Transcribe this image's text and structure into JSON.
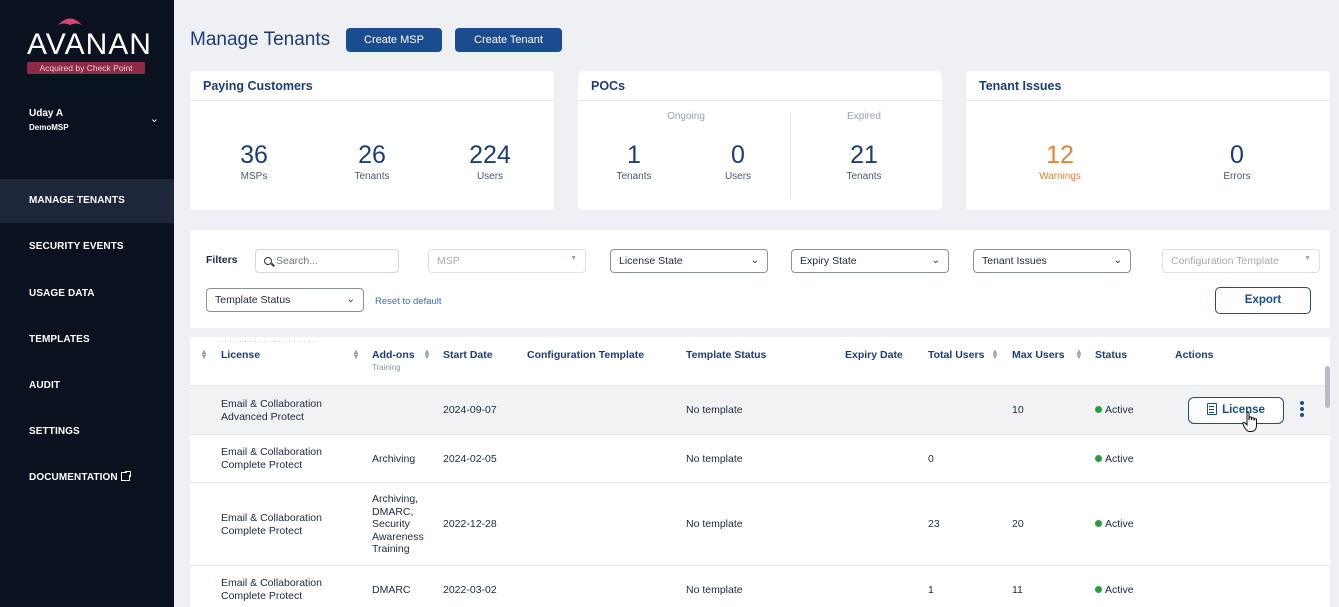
{
  "brand": {
    "logo_text": "AVANAN",
    "logo_subtitle": "Acquired by Check Point"
  },
  "user": {
    "name": "Uday A",
    "org": "DemoMSP"
  },
  "nav": {
    "items": [
      {
        "label": "MANAGE TENANTS",
        "active": true
      },
      {
        "label": "SECURITY EVENTS"
      },
      {
        "label": "USAGE DATA"
      },
      {
        "label": "TEMPLATES"
      },
      {
        "label": "AUDIT"
      },
      {
        "label": "SETTINGS"
      },
      {
        "label": "DOCUMENTATION"
      }
    ]
  },
  "header": {
    "title": "Manage Tenants",
    "create_msp": "Create MSP",
    "create_tenant": "Create Tenant"
  },
  "cards": {
    "paying": {
      "title": "Paying Customers",
      "msps_value": "36",
      "msps_label": "MSPs",
      "tenants_value": "26",
      "tenants_label": "Tenants",
      "users_value": "224",
      "users_label": "Users"
    },
    "pocs": {
      "title": "POCs",
      "ongoing_label": "Ongoing",
      "expired_label": "Expired",
      "ongoing_tenants_value": "1",
      "ongoing_tenants_label": "Tenants",
      "ongoing_users_value": "0",
      "ongoing_users_label": "Users",
      "expired_tenants_value": "21",
      "expired_tenants_label": "Tenants"
    },
    "issues": {
      "title": "Tenant Issues",
      "warnings_value": "12",
      "warnings_label": "Warnings",
      "errors_value": "0",
      "errors_label": "Errors",
      "warning_color": "#e8823a"
    }
  },
  "filters": {
    "label": "Filters",
    "search_placeholder": "Search...",
    "msp": "MSP",
    "license_state": "License State",
    "expiry_state": "Expiry State",
    "tenant_issues": "Tenant Issues",
    "configuration_template": "Configuration Template",
    "template_status": "Template Status",
    "reset": "Reset to default",
    "export": "Export"
  },
  "table": {
    "columns": {
      "license": "License",
      "addons": "Add-ons",
      "start_date": "Start Date",
      "config_template": "Configuration Template",
      "template_status": "Template Status",
      "expiry_date": "Expiry Date",
      "total_users": "Total Users",
      "max_users": "Max Users",
      "status": "Status",
      "actions": "Actions"
    },
    "partial_addon_text": "Training",
    "rows": [
      {
        "license": "Email & Collaboration Advanced Protect",
        "addons": "",
        "start_date": "2024-09-07",
        "config_template": "",
        "template_status": "No template",
        "expiry_date": "",
        "total_users": "",
        "max_users": "10",
        "status": "Active"
      },
      {
        "license": "Email & Collaboration Complete Protect",
        "addons": "Archiving",
        "start_date": "2024-02-05",
        "config_template": "",
        "template_status": "No template",
        "expiry_date": "",
        "total_users": "0",
        "max_users": "",
        "status": "Active"
      },
      {
        "license": "Email & Collaboration Complete Protect",
        "addons": "Archiving, DMARC, Security Awareness Training",
        "start_date": "2022-12-28",
        "config_template": "",
        "template_status": "No template",
        "expiry_date": "",
        "total_users": "23",
        "max_users": "20",
        "status": "Active"
      },
      {
        "license": "Email & Collaboration Complete Protect",
        "addons": "DMARC",
        "start_date": "2022-03-02",
        "config_template": "",
        "template_status": "No template",
        "expiry_date": "",
        "total_users": "1",
        "max_users": "11",
        "status": "Active"
      }
    ],
    "license_action": "License"
  },
  "colors": {
    "sidebar_bg": "#0a1220",
    "accent": "#1a4d8f",
    "status_active": "#2a9d3f"
  }
}
